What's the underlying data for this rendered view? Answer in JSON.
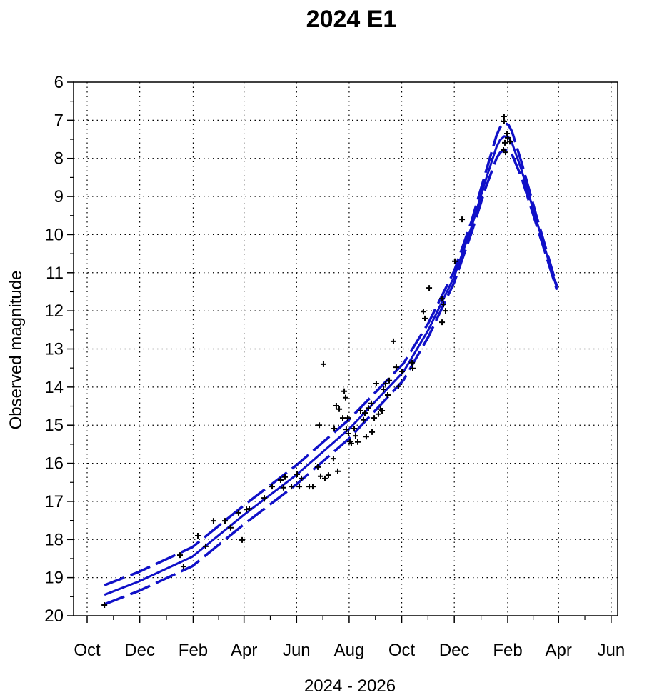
{
  "chart_data": {
    "type": "scatter",
    "title": "2024 E1",
    "xlabel": "2024 - 2026",
    "ylabel": "Observed magnitude",
    "x_unit": "days since 2024-10-01",
    "xlim": [
      -16,
      620
    ],
    "ylim": [
      20,
      6
    ],
    "y_inverted": true,
    "grid": true,
    "x_ticks": [
      {
        "value": 0,
        "label": "Oct"
      },
      {
        "value": 61,
        "label": "Dec"
      },
      {
        "value": 123,
        "label": "Feb"
      },
      {
        "value": 182,
        "label": "Apr"
      },
      {
        "value": 243,
        "label": "Jun"
      },
      {
        "value": 304,
        "label": "Aug"
      },
      {
        "value": 365,
        "label": "Oct"
      },
      {
        "value": 426,
        "label": "Dec"
      },
      {
        "value": 488,
        "label": "Feb"
      },
      {
        "value": 547,
        "label": "Apr"
      },
      {
        "value": 608,
        "label": "Jun"
      }
    ],
    "y_ticks": [
      6,
      7,
      8,
      9,
      10,
      11,
      12,
      13,
      14,
      15,
      16,
      17,
      18,
      19,
      20
    ],
    "fit_color": "#1010c8",
    "point_color": "#000000",
    "fit_curve": {
      "center": [
        [
          20,
          19.45
        ],
        [
          60,
          19.1
        ],
        [
          122,
          18.45
        ],
        [
          182,
          17.35
        ],
        [
          243,
          16.3
        ],
        [
          304,
          15.1
        ],
        [
          367,
          13.6
        ],
        [
          396,
          12.5
        ],
        [
          426,
          11.1
        ],
        [
          446,
          9.8
        ],
        [
          462,
          8.6
        ],
        [
          475,
          7.7
        ],
        [
          479,
          7.52
        ],
        [
          484,
          7.42
        ],
        [
          489,
          7.45
        ],
        [
          493,
          7.6
        ],
        [
          504,
          8.3
        ],
        [
          521,
          9.6
        ],
        [
          533,
          10.5
        ],
        [
          545,
          11.4
        ]
      ],
      "band": [
        0.25,
        0.25,
        0.25,
        0.25,
        0.25,
        0.25,
        0.22,
        0.18,
        0.15,
        0.15,
        0.2,
        0.3,
        0.33,
        0.35,
        0.33,
        0.3,
        0.2,
        0.12,
        0.08,
        0.05
      ]
    },
    "observations": [
      [
        20,
        19.72
      ],
      [
        107.7,
        18.41
      ],
      [
        111.8,
        18.71
      ],
      [
        128.4,
        17.9
      ],
      [
        137.5,
        18.18
      ],
      [
        146.6,
        17.51
      ],
      [
        159.9,
        17.51
      ],
      [
        166.5,
        17.69
      ],
      [
        175.6,
        17.3
      ],
      [
        179.8,
        18.01
      ],
      [
        184.8,
        17.21
      ],
      [
        188.1,
        17.19
      ],
      [
        205.5,
        16.91
      ],
      [
        214.6,
        16.61
      ],
      [
        224.5,
        16.44
      ],
      [
        227.8,
        16.64
      ],
      [
        229.5,
        16.36
      ],
      [
        237,
        16.61
      ],
      [
        243.6,
        16.29
      ],
      [
        246.1,
        16.61
      ],
      [
        248.6,
        16.4
      ],
      [
        257.7,
        16.61
      ],
      [
        261.8,
        16.61
      ],
      [
        267.6,
        16.1
      ],
      [
        269.3,
        15.0
      ],
      [
        270.9,
        16.34
      ],
      [
        274.2,
        13.4
      ],
      [
        275.9,
        16.4
      ],
      [
        280,
        16.31
      ],
      [
        285.8,
        15.88
      ],
      [
        286.7,
        15.09
      ],
      [
        289.1,
        14.49
      ],
      [
        290.8,
        16.21
      ],
      [
        292.5,
        14.58
      ],
      [
        296.6,
        14.81
      ],
      [
        298.3,
        14.11
      ],
      [
        299.9,
        14.28
      ],
      [
        300.7,
        15.11
      ],
      [
        302.4,
        14.81
      ],
      [
        303.2,
        15.22
      ],
      [
        304.9,
        15.43
      ],
      [
        306.5,
        15.48
      ],
      [
        309.9,
        15.09
      ],
      [
        311.5,
        15.28
      ],
      [
        314,
        15.44
      ],
      [
        317.3,
        14.62
      ],
      [
        320.6,
        14.86
      ],
      [
        322.3,
        14.68
      ],
      [
        323.9,
        15.3
      ],
      [
        326.4,
        14.55
      ],
      [
        329.7,
        14.43
      ],
      [
        330.6,
        15.18
      ],
      [
        333.1,
        14.81
      ],
      [
        335.5,
        13.91
      ],
      [
        338,
        14.71
      ],
      [
        340.5,
        14.58
      ],
      [
        342.2,
        14.62
      ],
      [
        343.8,
        14.06
      ],
      [
        346.3,
        13.91
      ],
      [
        348.8,
        14.21
      ],
      [
        350.5,
        13.83
      ],
      [
        355.4,
        12.8
      ],
      [
        358.7,
        13.48
      ],
      [
        361.2,
        13.98
      ],
      [
        365.4,
        13.59
      ],
      [
        377,
        13.36
      ],
      [
        377.8,
        13.51
      ],
      [
        390.2,
        12.02
      ],
      [
        391.9,
        12.2
      ],
      [
        396.9,
        11.4
      ],
      [
        411.8,
        11.68
      ],
      [
        411.8,
        12.3
      ],
      [
        413.4,
        11.83
      ],
      [
        415.9,
        12.0
      ],
      [
        426.7,
        10.7
      ],
      [
        435,
        9.6
      ],
      [
        483.8,
        6.9
      ],
      [
        483.8,
        7.03
      ],
      [
        484.7,
        7.59
      ],
      [
        487.2,
        7.35
      ],
      [
        483,
        7.78
      ],
      [
        488,
        7.46
      ],
      [
        490.5,
        7.56
      ],
      [
        485.5,
        7.84
      ]
    ]
  }
}
